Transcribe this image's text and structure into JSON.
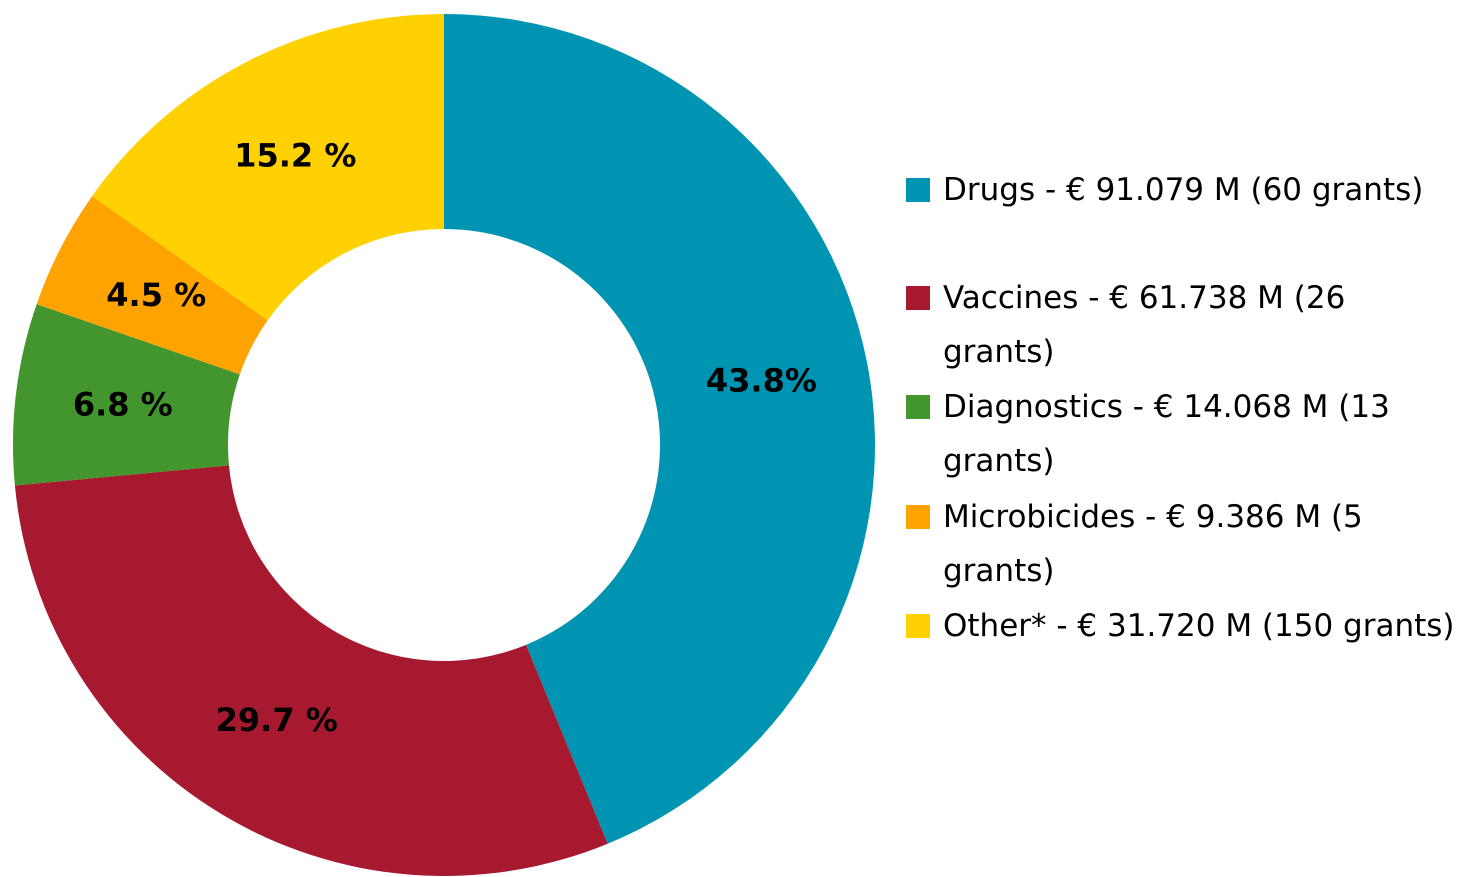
{
  "chart_data": {
    "type": "donut",
    "categories": [
      "Drugs - € 91.079 M (60 grants)",
      "Vaccines - € 61.738 M (26 grants)",
      "Diagnostics - € 14.068 M (13 grants)",
      "Microbicides - € 9.386 M (5 grants)",
      "Other* - € 31.720 M (150 grants)"
    ],
    "values": [
      43.8,
      29.7,
      6.8,
      4.5,
      15.2
    ],
    "value_labels": [
      "43.8%",
      "29.7 %",
      "6.8 %",
      "4.5 %",
      "15.2 %"
    ],
    "colors": [
      "#0094b3",
      "#a6192e",
      "#43962e",
      "#ffa300",
      "#ffd100"
    ],
    "legend": "right"
  }
}
